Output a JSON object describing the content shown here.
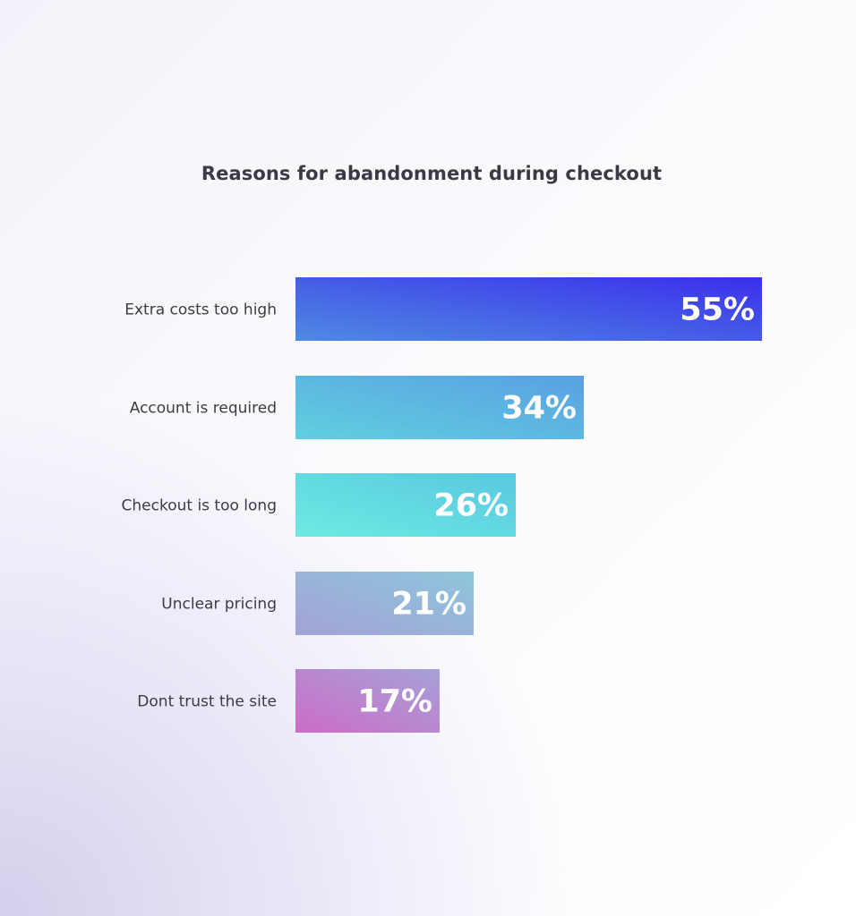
{
  "chart_data": {
    "type": "bar",
    "orientation": "horizontal",
    "title": "Reasons for abandonment during checkout",
    "categories": [
      "Extra costs too high",
      "Account is required",
      "Checkout is too long",
      "Unclear pricing",
      "Dont trust the site"
    ],
    "values": [
      55,
      34,
      26,
      21,
      17
    ],
    "value_labels": [
      "55%",
      "34%",
      "26%",
      "21%",
      "17%"
    ],
    "unit": "%",
    "xlim": [
      0,
      55
    ],
    "grid": false,
    "legend": "none",
    "bar_gradients": [
      [
        "#4f8ae2",
        "#3b2eec"
      ],
      [
        "#60cfe0",
        "#5aa0e2"
      ],
      [
        "#6eeae2",
        "#58c8e0"
      ],
      [
        "#a3a2d6",
        "#8ec6dc"
      ],
      [
        "#cc6cc8",
        "#a6a2d6"
      ]
    ]
  }
}
